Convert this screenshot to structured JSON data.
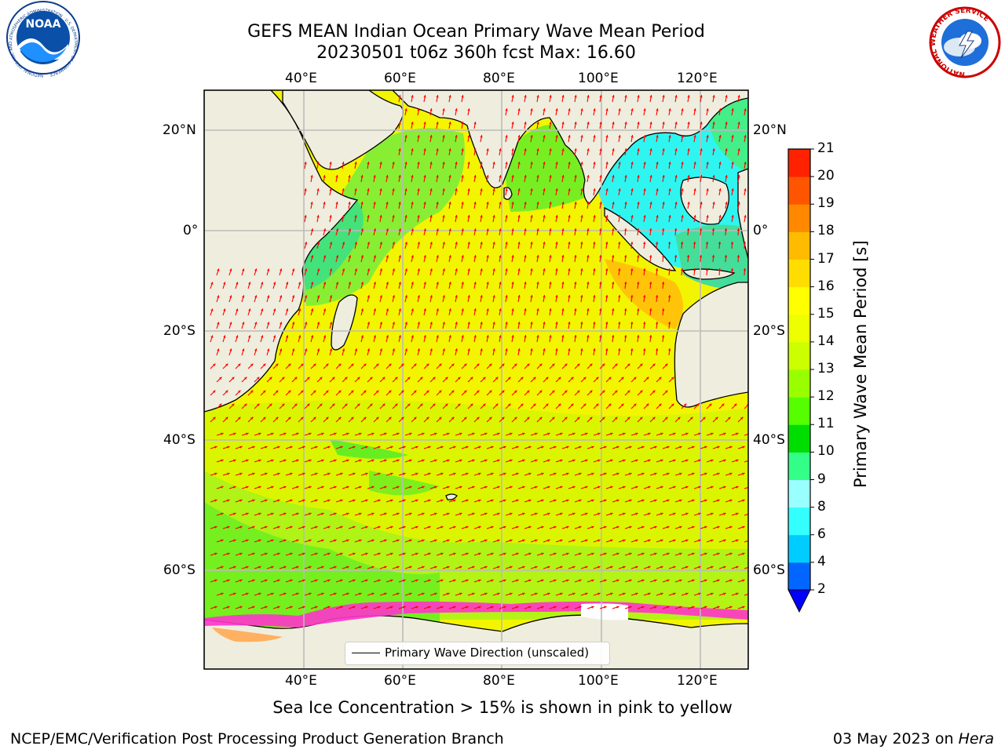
{
  "header": {
    "title_line1": "GEFS MEAN Indian Ocean Primary Wave Mean Period",
    "title_line2": "20230501 t06z 360h fcst   Max: 16.60"
  },
  "logos": {
    "left_text": "NOAA",
    "left_ring_text": "NATIONAL OCEANIC AND ATMOSPHERIC ADMINISTRATION · U.S. DEPARTMENT OF COMMERCE",
    "right_ring_text": "NATIONAL WEATHER SERVICE"
  },
  "map": {
    "lon_labels": [
      "40°E",
      "60°E",
      "80°E",
      "100°E",
      "120°E"
    ],
    "lat_labels": [
      "20°N",
      "0°",
      "20°S",
      "40°S",
      "60°S"
    ],
    "colors": {
      "land": "#efeddd",
      "arrow": "#ff0000",
      "grid": "#bbbbbb",
      "coast": "#000000",
      "sea_ice_white": "#ffffff",
      "sea_ice_pink": "#ff33cc"
    }
  },
  "legend": {
    "label": "Primary Wave Direction (unscaled)"
  },
  "colorbar": {
    "label": "Primary Wave Mean Period [s]",
    "ticks": [
      "2",
      "4",
      "6",
      "8",
      "9",
      "10",
      "11",
      "12",
      "13",
      "14",
      "15",
      "16",
      "17",
      "18",
      "19",
      "20",
      "21"
    ],
    "colors": [
      "#0066ff",
      "#00ccff",
      "#33ffff",
      "#99ffff",
      "#33ff88",
      "#00dd00",
      "#55ff00",
      "#99ff00",
      "#ccff00",
      "#eeff00",
      "#ffff00",
      "#ffdd00",
      "#ffbb00",
      "#ff8800",
      "#ff5500",
      "#ff2200"
    ],
    "extend_color": "#0000ff"
  },
  "footer": {
    "caption": "Sea Ice Concentration > 15% is shown in pink to yellow",
    "left_text": "NCEP/EMC/Verification Post Processing Product Generation Branch",
    "right_text": "03 May 2023 on ",
    "right_italic": "Hera"
  }
}
